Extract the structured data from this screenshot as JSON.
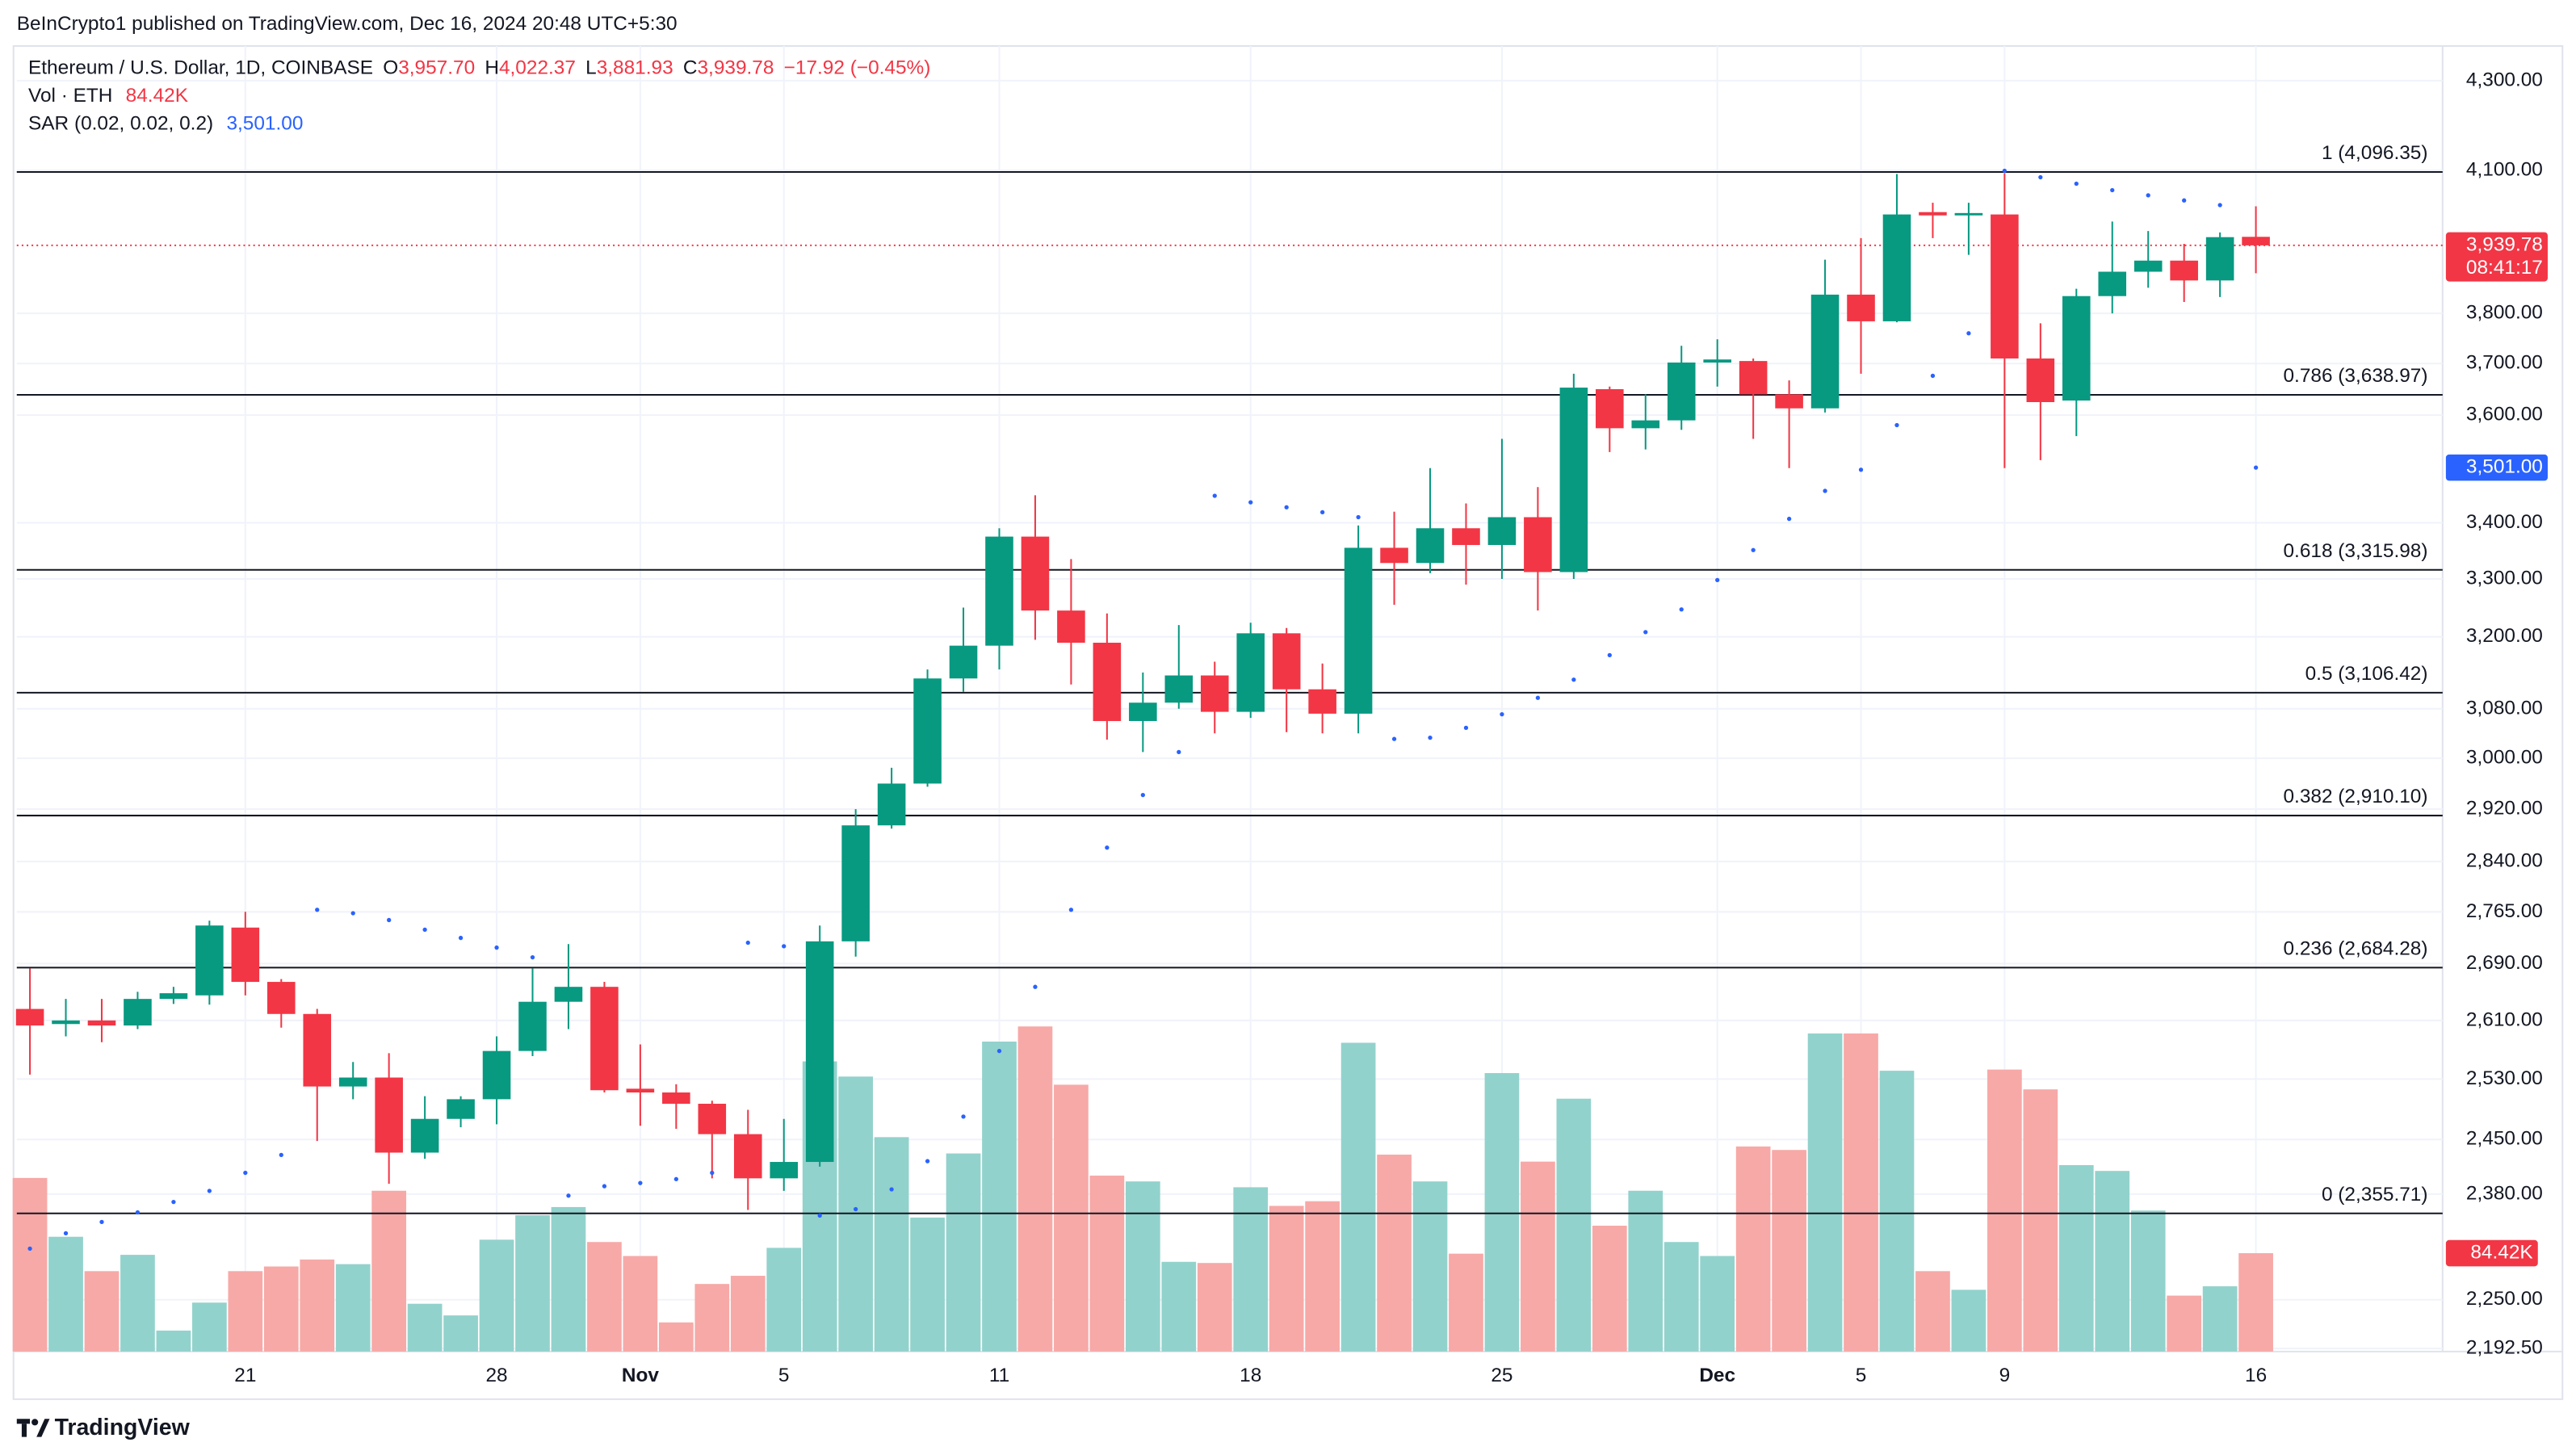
{
  "header": {
    "attribution": "BeInCrypto1 published on TradingView.com, Dec 16, 2024 20:48 UTC+5:30"
  },
  "footer": {
    "brand": "TradingView"
  },
  "chart_data": {
    "type": "candlestick",
    "log_scale": true,
    "grid": true,
    "up_color": "#089981",
    "down_color": "#f23645",
    "legend": {
      "symbol": "Ethereum / U.S. Dollar, 1D, COINBASE",
      "items": [
        {
          "key": "O",
          "value": "3,957.70"
        },
        {
          "key": "H",
          "value": "4,022.37"
        },
        {
          "key": "L",
          "value": "3,881.93"
        },
        {
          "key": "C",
          "value": "3,939.78"
        }
      ],
      "change": "−17.92 (−0.45%)"
    },
    "countdown": "08:41:17",
    "categories": [
      null,
      null,
      null,
      null,
      null,
      null,
      "21",
      null,
      null,
      null,
      null,
      null,
      null,
      "28",
      null,
      null,
      null,
      "Nov",
      null,
      null,
      null,
      "5",
      null,
      null,
      null,
      null,
      null,
      "11",
      null,
      null,
      null,
      null,
      null,
      null,
      "18",
      null,
      null,
      null,
      null,
      null,
      null,
      "25",
      null,
      null,
      null,
      null,
      null,
      "Dec",
      null,
      null,
      null,
      "5",
      null,
      null,
      null,
      "9",
      null,
      null,
      null,
      null,
      null,
      null,
      "16"
    ],
    "open": [
      2626,
      2605,
      2610,
      2603,
      2640,
      2645,
      2742,
      2664,
      2619,
      2520,
      2532,
      2433,
      2477,
      2503,
      2568,
      2636,
      2657,
      2517,
      2512,
      2497,
      2457,
      2400,
      2421,
      2722,
      2895,
      2960,
      3130,
      3185,
      3375,
      3245,
      3190,
      3060,
      3090,
      3135,
      3075,
      3206,
      3112,
      3072,
      3355,
      3328,
      3390,
      3360,
      3410,
      3312,
      3650,
      3575,
      3590,
      3702,
      3705,
      3640,
      3613,
      3838,
      3784,
      4010,
      4003,
      4005,
      3710,
      3628,
      3835,
      3885,
      3908,
      3867,
      3957.7
    ],
    "high": [
      2683,
      2640,
      2640,
      2650,
      2657,
      2752,
      2765,
      2668,
      2626,
      2553,
      2565,
      2507,
      2507,
      2588,
      2683,
      2718,
      2664,
      2577,
      2523,
      2501,
      2489,
      2477,
      2745,
      2920,
      2985,
      3145,
      3250,
      3390,
      3450,
      3335,
      3240,
      3140,
      3220,
      3158,
      3224,
      3215,
      3155,
      3395,
      3420,
      3500,
      3435,
      3555,
      3465,
      3680,
      3655,
      3640,
      3735,
      3748,
      3710,
      3667,
      3910,
      3955,
      4092,
      4030,
      4030,
      4094,
      3780,
      3850,
      3990,
      3970,
      3943,
      3967,
      4022.37
    ],
    "low": [
      2536,
      2588,
      2580,
      2598,
      2633,
      2632,
      2645,
      2600,
      2448,
      2503,
      2393,
      2425,
      2466,
      2470,
      2561,
      2598,
      2512,
      2468,
      2464,
      2400,
      2360,
      2384,
      2415,
      2700,
      2890,
      2955,
      3108,
      3145,
      3195,
      3120,
      3030,
      3010,
      3080,
      3040,
      3065,
      3042,
      3040,
      3040,
      3255,
      3310,
      3290,
      3300,
      3245,
      3300,
      3530,
      3535,
      3572,
      3655,
      3555,
      3500,
      3605,
      3680,
      3782,
      3955,
      3920,
      3500,
      3515,
      3560,
      3800,
      3852,
      3823,
      3833,
      3881.93
    ],
    "close": [
      2603,
      2610,
      2603,
      2640,
      2648,
      2745,
      2664,
      2619,
      2520,
      2532,
      2433,
      2477,
      2503,
      2568,
      2636,
      2657,
      2515,
      2512,
      2497,
      2457,
      2400,
      2421,
      2722,
      2895,
      2960,
      3130,
      3185,
      3375,
      3245,
      3190,
      3060,
      3090,
      3135,
      3075,
      3206,
      3112,
      3072,
      3355,
      3328,
      3390,
      3360,
      3410,
      3312,
      3653,
      3575,
      3590,
      3702,
      3708,
      3640,
      3613,
      3838,
      3784,
      4005,
      4003,
      4008,
      3710,
      3625,
      3835,
      3885,
      3908,
      3867,
      3957,
      3939.78
    ],
    "volume": {
      "name": "Vol · ETH",
      "up_color": "#92d2cc",
      "down_color": "#f7a9a7",
      "values": [
        149,
        98.5,
        69,
        83,
        18,
        42,
        69,
        73,
        79,
        75,
        138,
        41,
        31,
        96,
        117,
        124,
        94,
        82,
        25,
        58,
        65,
        89,
        249,
        236,
        184,
        115,
        170,
        266,
        279,
        229,
        151,
        146,
        77,
        76,
        141,
        125,
        129,
        265,
        169,
        146,
        84,
        239,
        163,
        217,
        108,
        138,
        94,
        82,
        176,
        173,
        273,
        273,
        241,
        69,
        53,
        242,
        225,
        160,
        155,
        121,
        48,
        56,
        84.42
      ],
      "value_labels": [
        null,
        null,
        null,
        null,
        null,
        null,
        null,
        null,
        null,
        null,
        null,
        null,
        null,
        null,
        null,
        null,
        null,
        null,
        null,
        null,
        null,
        null,
        null,
        null,
        null,
        null,
        null,
        null,
        null,
        null,
        null,
        null,
        null,
        null,
        null,
        null,
        null,
        null,
        null,
        null,
        null,
        null,
        null,
        null,
        null,
        null,
        null,
        null,
        null,
        null,
        null,
        null,
        null,
        null,
        null,
        null,
        null,
        null,
        null,
        null,
        null,
        null,
        "84.42K"
      ]
    },
    "sar": {
      "name": "SAR (0.02, 0.02, 0.2)",
      "color": "#2962ff",
      "values": [
        2312,
        2331,
        2345,
        2357,
        2370,
        2384,
        2407,
        2430,
        2768,
        2763,
        2753,
        2739,
        2727,
        2713,
        2699,
        2378,
        2390,
        2394,
        2399,
        2407,
        2720,
        2715,
        2353,
        2361,
        2386,
        2422,
        2480,
        2568,
        2657,
        2768,
        2861,
        2942,
        3010,
        3449,
        3437,
        3428,
        3419,
        3410,
        3031,
        3033,
        3049,
        3071,
        3098,
        3128,
        3169,
        3208,
        3247,
        3298,
        3351,
        3407,
        3458,
        3497,
        3581,
        3676,
        3760,
        4099,
        4085,
        4071,
        4057,
        4046,
        4035,
        4025,
        3501
      ],
      "value_labels": [
        null,
        null,
        null,
        null,
        null,
        null,
        null,
        null,
        null,
        null,
        null,
        null,
        null,
        null,
        null,
        null,
        null,
        null,
        null,
        null,
        null,
        null,
        null,
        null,
        null,
        null,
        null,
        null,
        null,
        null,
        null,
        null,
        null,
        null,
        null,
        null,
        null,
        null,
        null,
        null,
        null,
        null,
        null,
        null,
        null,
        null,
        null,
        null,
        null,
        null,
        null,
        null,
        null,
        null,
        null,
        null,
        null,
        null,
        null,
        null,
        null,
        null,
        "3,501.00"
      ]
    },
    "fib_color": "#131722",
    "fib_levels": [
      {
        "price": 4096.35,
        "label": "1 (4,096.35)"
      },
      {
        "price": 3638.97,
        "label": "0.786 (3,638.97)"
      },
      {
        "price": 3315.98,
        "label": "0.618 (3,315.98)"
      },
      {
        "price": 3106.42,
        "label": "0.5 (3,106.42)"
      },
      {
        "price": 2910.1,
        "label": "0.382 (2,910.10)"
      },
      {
        "price": 2684.28,
        "label": "0.236 (2,684.28)"
      },
      {
        "price": 2355.71,
        "label": "0 (2,355.71)"
      }
    ],
    "ylim": [
      2189,
      4380
    ],
    "yticks": [
      {
        "value": 4300,
        "label": "4,300.00"
      },
      {
        "value": 4100,
        "label": "4,100.00"
      },
      {
        "value": 3800,
        "label": "3,800.00"
      },
      {
        "value": 3700,
        "label": "3,700.00"
      },
      {
        "value": 3600,
        "label": "3,600.00"
      },
      {
        "value": 3400,
        "label": "3,400.00"
      },
      {
        "value": 3300,
        "label": "3,300.00"
      },
      {
        "value": 3200,
        "label": "3,200.00"
      },
      {
        "value": 3080,
        "label": "3,080.00"
      },
      {
        "value": 3000,
        "label": "3,000.00"
      },
      {
        "value": 2920,
        "label": "2,920.00"
      },
      {
        "value": 2840,
        "label": "2,840.00"
      },
      {
        "value": 2765,
        "label": "2,765.00"
      },
      {
        "value": 2690,
        "label": "2,690.00"
      },
      {
        "value": 2610,
        "label": "2,610.00"
      },
      {
        "value": 2530,
        "label": "2,530.00"
      },
      {
        "value": 2450,
        "label": "2,450.00"
      },
      {
        "value": 2380,
        "label": "2,380.00"
      },
      {
        "value": 2250,
        "label": "2,250.00"
      },
      {
        "value": 2192.5,
        "label": "2,192.50"
      }
    ]
  }
}
